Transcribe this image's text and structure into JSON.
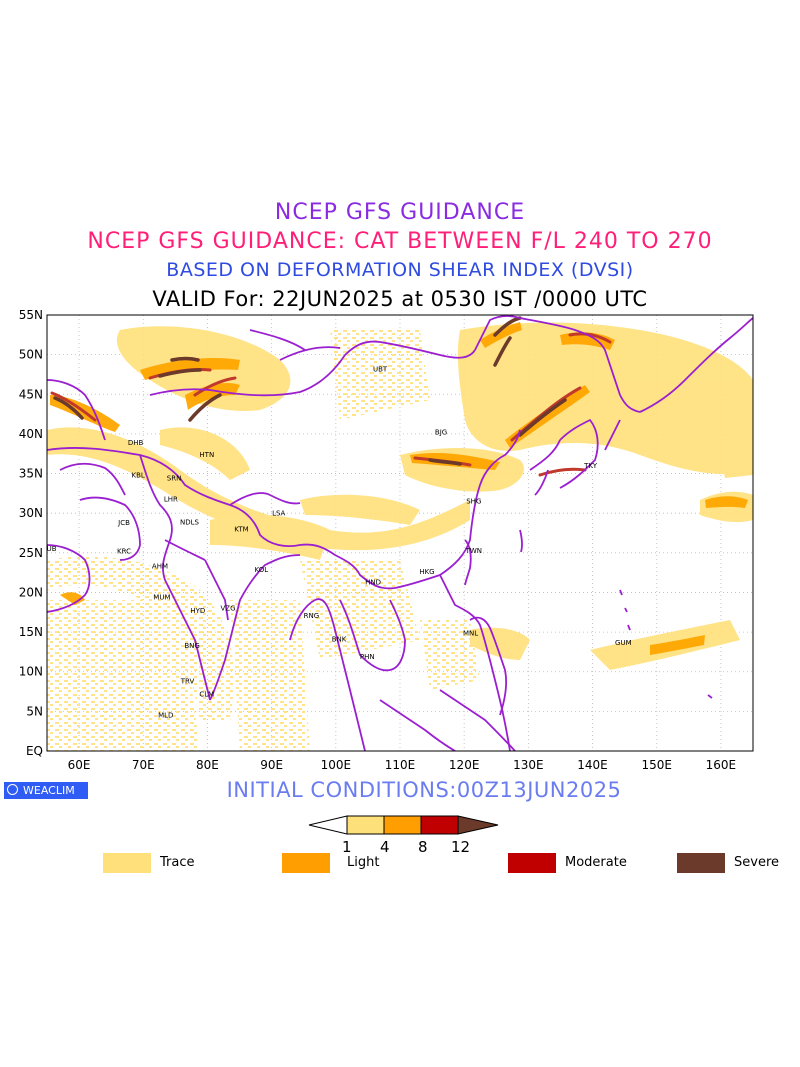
{
  "titles": {
    "line1": "NCEP GFS GUIDANCE",
    "line2": "NCEP GFS GUIDANCE: CAT BETWEEN F/L 240 TO 270",
    "line3": "BASED ON DEFORMATION SHEAR INDEX (DVSI)",
    "line4": "VALID For: 22JUN2025 at 0530 IST /0000 UTC"
  },
  "map": {
    "lat_labels": [
      "55N",
      "50N",
      "45N",
      "40N",
      "35N",
      "30N",
      "25N",
      "20N",
      "15N",
      "10N",
      "5N",
      "EQ"
    ],
    "lon_labels": [
      "60E",
      "70E",
      "80E",
      "90E",
      "100E",
      "110E",
      "120E",
      "130E",
      "140E",
      "150E",
      "160E"
    ],
    "lat_range": [
      0,
      55
    ],
    "lon_range": [
      55,
      165
    ],
    "cities": [
      {
        "name": "UBT",
        "lon": 106.9,
        "lat": 47.9
      },
      {
        "name": "BJG",
        "lon": 116.4,
        "lat": 39.9
      },
      {
        "name": "TKY",
        "lon": 139.7,
        "lat": 35.7
      },
      {
        "name": "SHG",
        "lon": 121.5,
        "lat": 31.2
      },
      {
        "name": "TWN",
        "lon": 121.5,
        "lat": 25.0
      },
      {
        "name": "HKG",
        "lon": 114.2,
        "lat": 22.3
      },
      {
        "name": "HND",
        "lon": 105.8,
        "lat": 21.0
      },
      {
        "name": "DHB",
        "lon": 68.8,
        "lat": 38.6
      },
      {
        "name": "KBL",
        "lon": 69.2,
        "lat": 34.5
      },
      {
        "name": "HTN",
        "lon": 79.9,
        "lat": 37.1
      },
      {
        "name": "SRN",
        "lon": 74.8,
        "lat": 34.1
      },
      {
        "name": "LHR",
        "lon": 74.3,
        "lat": 31.5
      },
      {
        "name": "LSA",
        "lon": 91.1,
        "lat": 29.7
      },
      {
        "name": "JCB",
        "lon": 67.0,
        "lat": 28.5
      },
      {
        "name": "NDLS",
        "lon": 77.2,
        "lat": 28.6
      },
      {
        "name": "KTM",
        "lon": 85.3,
        "lat": 27.7
      },
      {
        "name": "DUB",
        "lon": 55.3,
        "lat": 25.2
      },
      {
        "name": "KRC",
        "lon": 67.0,
        "lat": 24.9
      },
      {
        "name": "AHM",
        "lon": 72.6,
        "lat": 23.0
      },
      {
        "name": "KOL",
        "lon": 88.4,
        "lat": 22.6
      },
      {
        "name": "MUM",
        "lon": 72.9,
        "lat": 19.1
      },
      {
        "name": "HYD",
        "lon": 78.5,
        "lat": 17.4
      },
      {
        "name": "VZG",
        "lon": 83.2,
        "lat": 17.7
      },
      {
        "name": "RNG",
        "lon": 96.2,
        "lat": 16.8
      },
      {
        "name": "BNG",
        "lon": 77.6,
        "lat": 13.0
      },
      {
        "name": "BNK",
        "lon": 100.5,
        "lat": 13.8
      },
      {
        "name": "PHN",
        "lon": 104.9,
        "lat": 11.6
      },
      {
        "name": "MNL",
        "lon": 121.0,
        "lat": 14.6
      },
      {
        "name": "GUM",
        "lon": 144.8,
        "lat": 13.4
      },
      {
        "name": "TRV",
        "lon": 76.9,
        "lat": 8.5
      },
      {
        "name": "CLM",
        "lon": 79.9,
        "lat": 6.9
      },
      {
        "name": "MLD",
        "lon": 73.5,
        "lat": 4.2
      }
    ]
  },
  "initial_conditions": "INITIAL CONDITIONS:00Z13JUN2025",
  "logo_text": "WEACLIM",
  "colorbar": {
    "ticks": [
      "1",
      "4",
      "8",
      "12"
    ],
    "colors": [
      "#fde07a",
      "#ff9e00",
      "#c00000",
      "#6b3a2a"
    ]
  },
  "legend": [
    {
      "label": "Trace",
      "color": "#ffe07a"
    },
    {
      "label": "Light",
      "color": "#ff9e00"
    },
    {
      "label": "Moderate",
      "color": "#c00000"
    },
    {
      "label": "Severe",
      "color": "#6b3a2a"
    }
  ],
  "colors": {
    "boundaries": "#9b1fd0",
    "trace": "#ffe07a",
    "light": "#ffa500",
    "moderate": "#c0392b",
    "severe": "#6b3a2a"
  }
}
